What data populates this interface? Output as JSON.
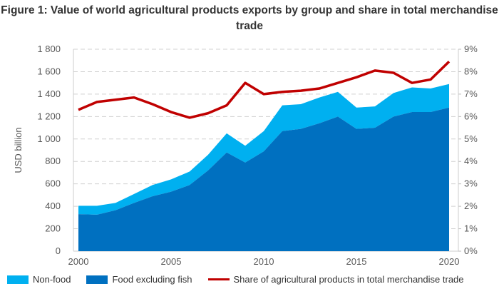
{
  "chart_data": {
    "type": "area",
    "title": "Figure 1: Value of world agricultural products exports by group and share in total merchandise trade",
    "ylabel": "USD billion",
    "ylim": [
      0,
      1800
    ],
    "y2lim": [
      0,
      9
    ],
    "yticks": [
      "0",
      "200",
      "400",
      "600",
      "800",
      "1 000",
      "1 200",
      "1 400",
      "1 600",
      "1 800"
    ],
    "y2ticks": [
      "0%",
      "1%",
      "2%",
      "3%",
      "4%",
      "5%",
      "6%",
      "7%",
      "8%",
      "9%"
    ],
    "xticks": [
      "2000",
      "2005",
      "2010",
      "2015",
      "2020"
    ],
    "x": [
      2000,
      2001,
      2002,
      2003,
      2004,
      2005,
      2006,
      2007,
      2008,
      2009,
      2010,
      2011,
      2012,
      2013,
      2014,
      2015,
      2016,
      2017,
      2018,
      2019,
      2020
    ],
    "series": [
      {
        "name": "Food excluding fish",
        "type": "area",
        "color": "#0070c0",
        "values": [
          330,
          325,
          365,
          430,
          490,
          530,
          590,
          720,
          880,
          790,
          890,
          1070,
          1090,
          1140,
          1200,
          1090,
          1100,
          1200,
          1240,
          1240,
          1280
        ]
      },
      {
        "name": "Non-food",
        "type": "area",
        "color": "#00b0f0",
        "values": [
          75,
          80,
          65,
          80,
          100,
          110,
          120,
          140,
          170,
          150,
          180,
          230,
          220,
          230,
          220,
          190,
          190,
          210,
          220,
          210,
          210
        ]
      },
      {
        "name": "Share of agricultural products in total merchandise trade",
        "type": "line",
        "axis": "right",
        "color": "#c00000",
        "values": [
          6.3,
          6.65,
          6.75,
          6.85,
          6.55,
          6.2,
          5.95,
          6.15,
          6.5,
          7.5,
          7.0,
          7.1,
          7.15,
          7.25,
          7.5,
          7.75,
          8.05,
          7.95,
          7.5,
          7.65,
          8.45
        ]
      }
    ],
    "legend": "bottom",
    "grid": true
  }
}
